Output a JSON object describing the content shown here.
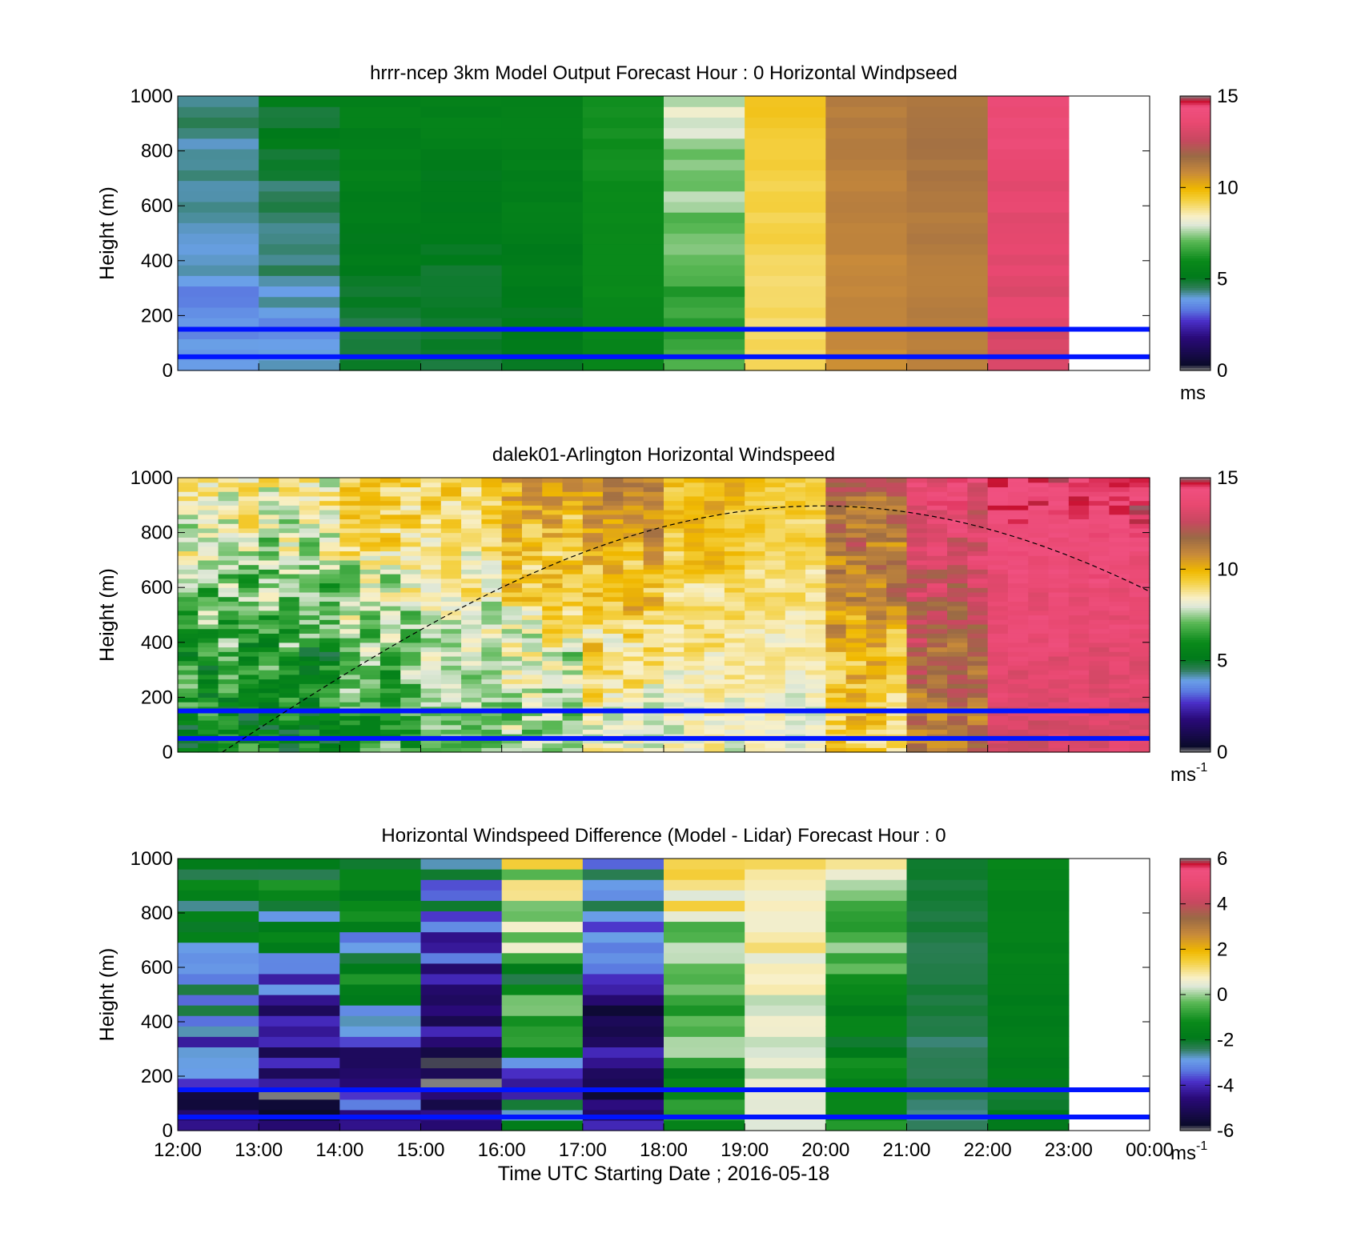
{
  "chart_data": {
    "type": "heatmap",
    "xlabel": "Time UTC  Starting Date ; 2016-05-18",
    "x_tick_labels": [
      "12:00",
      "13:00",
      "14:00",
      "15:00",
      "16:00",
      "17:00",
      "18:00",
      "19:00",
      "20:00",
      "21:00",
      "22:00",
      "23:00",
      "00:00"
    ],
    "xlim": [
      12,
      24
    ],
    "colormap": {
      "stops": [
        [
          0,
          "#808080"
        ],
        [
          0.02,
          "#0a0a2a"
        ],
        [
          0.12,
          "#2a0a7a"
        ],
        [
          0.18,
          "#4a30c8"
        ],
        [
          0.22,
          "#5a78e0"
        ],
        [
          0.26,
          "#6aa0e8"
        ],
        [
          0.3,
          "#2e7d58"
        ],
        [
          0.34,
          "#007a1a"
        ],
        [
          0.4,
          "#0a8a1a"
        ],
        [
          0.47,
          "#5ab855"
        ],
        [
          0.53,
          "#dfe8d8"
        ],
        [
          0.56,
          "#f8f0c8"
        ],
        [
          0.62,
          "#f4d040"
        ],
        [
          0.66,
          "#f0b800"
        ],
        [
          0.72,
          "#c88a3a"
        ],
        [
          0.78,
          "#9a6a45"
        ],
        [
          0.84,
          "#c84860"
        ],
        [
          0.9,
          "#e84870"
        ],
        [
          0.96,
          "#f05080"
        ],
        [
          0.98,
          "#c81030"
        ],
        [
          1,
          "#808080"
        ]
      ]
    },
    "panels": [
      {
        "title": "hrrr-ncep 3km Model Output   Forecast Hour : 0 Horizontal Windpseed",
        "ylabel": "Height (m)",
        "ylim": [
          0,
          1000
        ],
        "y_tick_labels": [
          "0",
          "200",
          "400",
          "600",
          "800",
          "1000"
        ],
        "clim": [
          0,
          15
        ],
        "colorbar_tick_labels": [
          "0",
          "5",
          "10",
          "15"
        ],
        "colorbar_unit": "ms",
        "colorbar_unit_exp": "",
        "reference_lines_m": [
          50,
          150
        ],
        "mixing_height_curve": false,
        "time_hours": [
          12,
          13,
          14,
          15,
          16,
          17,
          18,
          19,
          20,
          21,
          22
        ],
        "value_range_per_hour_ms": [
          [
            3.5,
            4.5
          ],
          [
            3.8,
            5.2
          ],
          [
            4.8,
            5.5
          ],
          [
            4.8,
            5.5
          ],
          [
            5.0,
            5.5
          ],
          [
            5.8,
            6.2
          ],
          [
            6.4,
            8.0
          ],
          [
            9.0,
            9.5
          ],
          [
            10.8,
            11.2
          ],
          [
            11.0,
            11.5
          ],
          [
            13.0,
            14.0
          ]
        ]
      },
      {
        "title": "dalek01-Arlington  Horizontal Windspeed",
        "ylabel": "Height (m)",
        "ylim": [
          0,
          1000
        ],
        "y_tick_labels": [
          "0",
          "200",
          "400",
          "600",
          "800",
          "1000"
        ],
        "clim": [
          0,
          15
        ],
        "colorbar_tick_labels": [
          "0",
          "5",
          "10",
          "15"
        ],
        "colorbar_unit": "ms",
        "colorbar_unit_exp": "-1",
        "reference_lines_m": [
          50,
          150
        ],
        "mixing_height_curve": true,
        "time_hours": [
          12,
          13,
          14,
          15,
          16,
          17,
          18,
          19,
          20,
          21,
          22,
          23
        ],
        "value_range_per_hour_ms": [
          [
            5,
            9
          ],
          [
            5,
            9
          ],
          [
            6,
            9.5
          ],
          [
            7,
            9.5
          ],
          [
            7,
            10.5
          ],
          [
            8,
            11
          ],
          [
            8,
            10
          ],
          [
            8,
            9.5
          ],
          [
            9,
            12
          ],
          [
            11,
            14
          ],
          [
            13,
            14.5
          ],
          [
            13,
            14.5
          ]
        ]
      },
      {
        "title": "Horizontal Windspeed Difference (Model - Lidar) Forecast Hour : 0",
        "ylabel": "Height (m)",
        "ylim": [
          0,
          1000
        ],
        "y_tick_labels": [
          "0",
          "200",
          "400",
          "600",
          "800",
          "1000"
        ],
        "clim": [
          -6,
          6
        ],
        "colorbar_tick_labels": [
          "-6",
          "-4",
          "-2",
          "0",
          "2",
          "4",
          "6"
        ],
        "colorbar_unit": "ms",
        "colorbar_unit_exp": "-1",
        "reference_lines_m": [
          50,
          150
        ],
        "mixing_height_curve": false,
        "time_hours": [
          12,
          13,
          14,
          15,
          16,
          17,
          18,
          19,
          20,
          21,
          22
        ],
        "value_range_per_hour_ms": [
          [
            -5,
            -1
          ],
          [
            -5.5,
            -1.5
          ],
          [
            -4.5,
            -0.5
          ],
          [
            -5.8,
            -2
          ],
          [
            -4,
            1
          ],
          [
            -5.8,
            -2.5
          ],
          [
            -1.5,
            1.5
          ],
          [
            0,
            1.5
          ],
          [
            -2,
            0.5
          ],
          [
            -2.5,
            -2
          ],
          [
            -2,
            -1.5
          ]
        ]
      }
    ]
  }
}
